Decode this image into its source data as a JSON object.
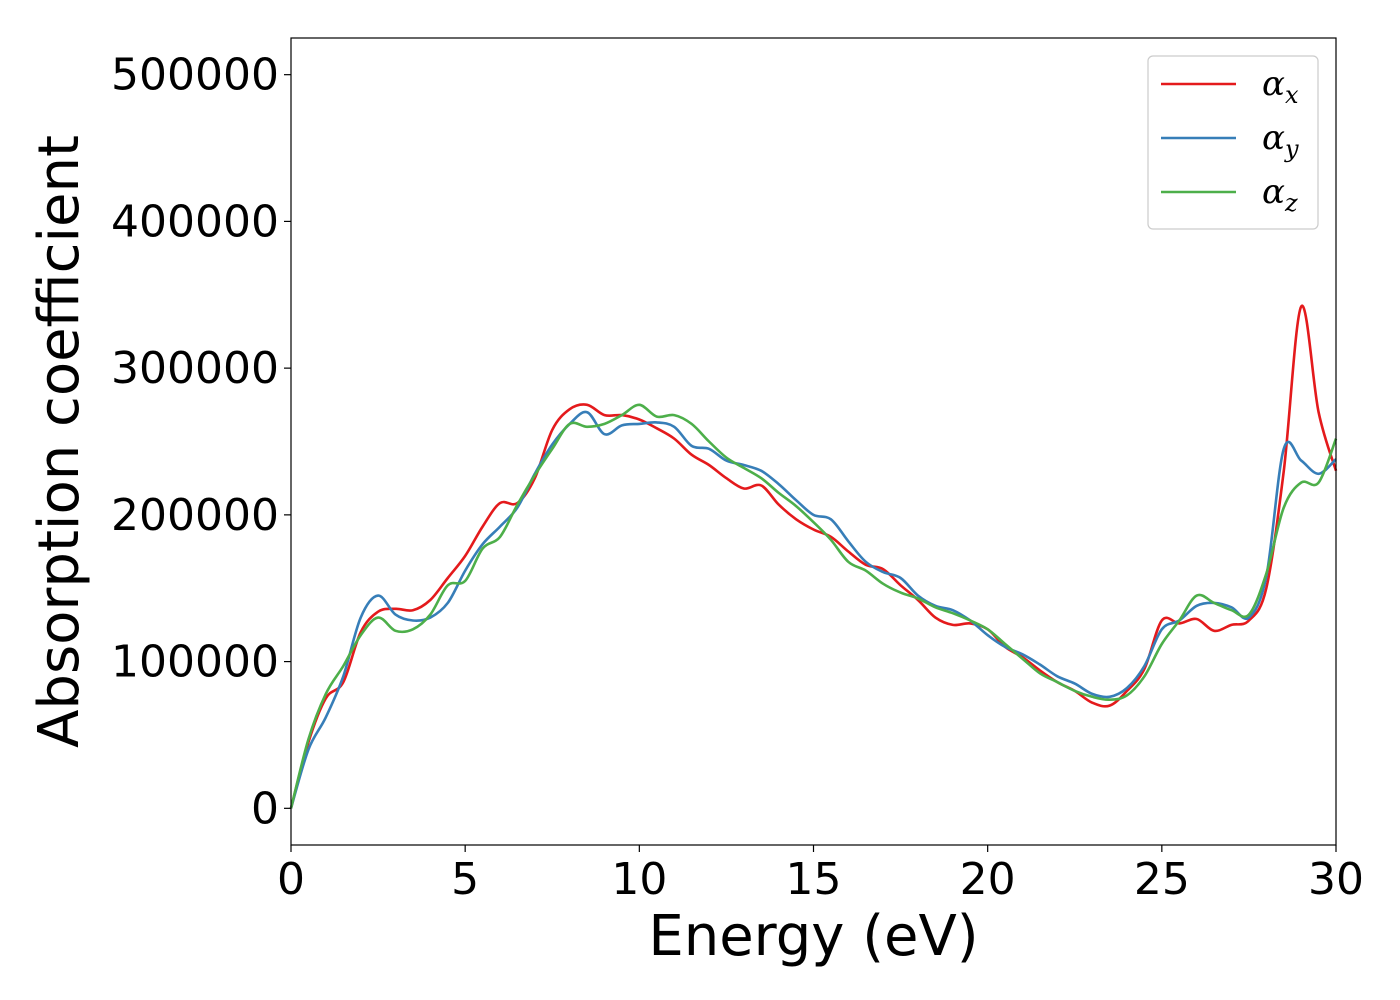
{
  "chart_data": {
    "type": "line",
    "title": "",
    "xlabel": "Energy (eV)",
    "ylabel": "Absorption coefficient",
    "xlim": [
      0,
      30
    ],
    "ylim": [
      -25000,
      525000
    ],
    "xticks": [
      0,
      5,
      10,
      15,
      20,
      25,
      30
    ],
    "yticks": [
      0,
      100000,
      200000,
      300000,
      400000,
      500000
    ],
    "grid": false,
    "legend_position": "top-right",
    "series": [
      {
        "name": "α",
        "subscript": "x",
        "color": "#e41a1c",
        "x": [
          0,
          0.5,
          1,
          1.5,
          2,
          2.5,
          3,
          3.5,
          4,
          4.5,
          5,
          5.5,
          6,
          6.5,
          7,
          7.5,
          8,
          8.5,
          9,
          9.5,
          10,
          10.5,
          11,
          11.5,
          12,
          12.5,
          13,
          13.5,
          14,
          14.5,
          15,
          15.5,
          16,
          16.5,
          17,
          17.5,
          18,
          18.5,
          19,
          19.5,
          20,
          20.5,
          21,
          21.5,
          22,
          22.5,
          23,
          23.5,
          24,
          24.5,
          25,
          25.5,
          26,
          26.5,
          27,
          27.5,
          28,
          28.5,
          29,
          29.5,
          30
        ],
        "values": [
          0,
          45000,
          75000,
          86000,
          120000,
          134000,
          136000,
          135000,
          142000,
          157000,
          172000,
          192000,
          208000,
          208000,
          225000,
          258000,
          272000,
          275000,
          268000,
          268000,
          265000,
          259000,
          252000,
          241000,
          234000,
          225000,
          218000,
          220000,
          207000,
          197000,
          190000,
          185000,
          175000,
          166000,
          163000,
          152000,
          142000,
          130000,
          125000,
          126000,
          122000,
          110000,
          103000,
          94000,
          86000,
          80000,
          72000,
          70000,
          80000,
          95000,
          128000,
          126000,
          129000,
          121000,
          125000,
          128000,
          150000,
          230000,
          342000,
          270000,
          230000
        ]
      },
      {
        "name": "α",
        "subscript": "y",
        "color": "#377eb8",
        "x": [
          0,
          0.5,
          1,
          1.5,
          2,
          2.5,
          3,
          3.5,
          4,
          4.5,
          5,
          5.5,
          6,
          6.5,
          7,
          7.5,
          8,
          8.5,
          9,
          9.5,
          10,
          10.5,
          11,
          11.5,
          12,
          12.5,
          13,
          13.5,
          14,
          14.5,
          15,
          15.5,
          16,
          16.5,
          17,
          17.5,
          18,
          18.5,
          19,
          19.5,
          20,
          20.5,
          21,
          21.5,
          22,
          22.5,
          23,
          23.5,
          24,
          24.5,
          25,
          25.5,
          26,
          26.5,
          27,
          27.5,
          28,
          28.5,
          29,
          29.5,
          30
        ],
        "values": [
          0,
          40000,
          62000,
          90000,
          130000,
          145000,
          132000,
          128000,
          130000,
          140000,
          162000,
          180000,
          192000,
          205000,
          228000,
          248000,
          262000,
          270000,
          255000,
          261000,
          262000,
          263000,
          260000,
          247000,
          245000,
          237000,
          234000,
          230000,
          221000,
          210000,
          200000,
          197000,
          182000,
          168000,
          161000,
          157000,
          145000,
          138000,
          135000,
          128000,
          118000,
          110000,
          105000,
          98000,
          90000,
          85000,
          78000,
          76000,
          82000,
          97000,
          122000,
          128000,
          138000,
          140000,
          137000,
          130000,
          158000,
          245000,
          237000,
          228000,
          238000
        ]
      },
      {
        "name": "α",
        "subscript": "z",
        "color": "#4daf4a",
        "x": [
          0,
          0.5,
          1,
          1.5,
          2,
          2.5,
          3,
          3.5,
          4,
          4.5,
          5,
          5.5,
          6,
          6.5,
          7,
          7.5,
          8,
          8.5,
          9,
          9.5,
          10,
          10.5,
          11,
          11.5,
          12,
          12.5,
          13,
          13.5,
          14,
          14.5,
          15,
          15.5,
          16,
          16.5,
          17,
          17.5,
          18,
          18.5,
          19,
          19.5,
          20,
          20.5,
          21,
          21.5,
          22,
          22.5,
          23,
          23.5,
          24,
          24.5,
          25,
          25.5,
          26,
          26.5,
          27,
          27.5,
          28,
          28.5,
          29,
          29.5,
          30
        ],
        "values": [
          0,
          47000,
          78000,
          97000,
          118000,
          130000,
          121000,
          122000,
          132000,
          152000,
          155000,
          177000,
          185000,
          207000,
          227000,
          245000,
          262000,
          260000,
          262000,
          268000,
          275000,
          267000,
          268000,
          262000,
          250000,
          239000,
          232000,
          225000,
          215000,
          206000,
          195000,
          183000,
          168000,
          162000,
          153000,
          147000,
          143000,
          137000,
          133000,
          128000,
          122000,
          112000,
          102000,
          92000,
          86000,
          80000,
          76000,
          74000,
          77000,
          90000,
          112000,
          128000,
          145000,
          140000,
          135000,
          132000,
          160000,
          205000,
          222000,
          222000,
          252000
        ]
      }
    ]
  }
}
